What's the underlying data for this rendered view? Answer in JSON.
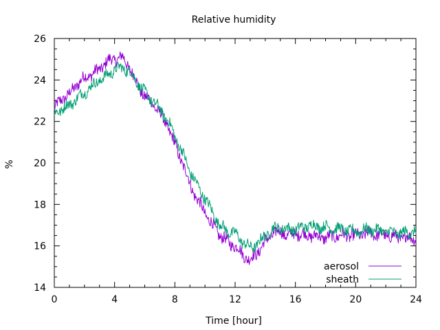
{
  "chart_data": {
    "type": "line",
    "title": "Relative humidity",
    "xlabel": "Time [hour]",
    "ylabel": "%",
    "xlim": [
      0,
      24
    ],
    "ylim": [
      14,
      26
    ],
    "x_ticks": [
      0,
      4,
      8,
      12,
      16,
      20,
      24
    ],
    "y_ticks": [
      14,
      16,
      18,
      20,
      22,
      24,
      26
    ],
    "grid": false,
    "legend_position": "bottom-right",
    "series": [
      {
        "name": "aerosol",
        "color": "#9400d3",
        "points": [
          [
            0.0,
            22.6
          ],
          [
            0.5,
            23.1
          ],
          [
            1.0,
            23.3
          ],
          [
            1.5,
            23.8
          ],
          [
            2.0,
            24.1
          ],
          [
            2.5,
            24.3
          ],
          [
            3.0,
            24.5
          ],
          [
            3.5,
            24.9
          ],
          [
            4.0,
            25.0
          ],
          [
            4.5,
            25.1
          ],
          [
            5.0,
            24.6
          ],
          [
            5.5,
            23.8
          ],
          [
            6.0,
            23.2
          ],
          [
            6.5,
            22.9
          ],
          [
            7.0,
            22.4
          ],
          [
            7.5,
            21.8
          ],
          [
            8.0,
            20.9
          ],
          [
            8.5,
            20.0
          ],
          [
            9.0,
            19.0
          ],
          [
            9.5,
            18.2
          ],
          [
            10.0,
            17.6
          ],
          [
            10.5,
            17.0
          ],
          [
            11.0,
            16.5
          ],
          [
            11.5,
            16.2
          ],
          [
            12.0,
            16.0
          ],
          [
            12.5,
            15.6
          ],
          [
            13.0,
            15.3
          ],
          [
            13.5,
            15.7
          ],
          [
            14.0,
            16.2
          ],
          [
            14.5,
            16.6
          ],
          [
            15.0,
            16.7
          ],
          [
            15.5,
            16.5
          ],
          [
            16.0,
            16.6
          ],
          [
            17.0,
            16.5
          ],
          [
            18.0,
            16.4
          ],
          [
            19.0,
            16.5
          ],
          [
            20.0,
            16.5
          ],
          [
            21.0,
            16.6
          ],
          [
            22.0,
            16.5
          ],
          [
            23.0,
            16.4
          ],
          [
            24.0,
            16.4
          ]
        ]
      },
      {
        "name": "sheath",
        "color": "#009e73",
        "points": [
          [
            0.0,
            22.4
          ],
          [
            0.5,
            22.6
          ],
          [
            1.0,
            22.8
          ],
          [
            1.5,
            23.1
          ],
          [
            2.0,
            23.4
          ],
          [
            2.5,
            23.7
          ],
          [
            3.0,
            24.0
          ],
          [
            3.5,
            24.2
          ],
          [
            4.0,
            24.5
          ],
          [
            4.5,
            24.6
          ],
          [
            5.0,
            24.4
          ],
          [
            5.5,
            23.9
          ],
          [
            6.0,
            23.4
          ],
          [
            6.5,
            23.0
          ],
          [
            7.0,
            22.6
          ],
          [
            7.5,
            22.1
          ],
          [
            8.0,
            21.3
          ],
          [
            8.5,
            20.5
          ],
          [
            9.0,
            19.6
          ],
          [
            9.5,
            18.9
          ],
          [
            10.0,
            18.3
          ],
          [
            10.5,
            17.6
          ],
          [
            11.0,
            17.0
          ],
          [
            11.5,
            16.7
          ],
          [
            12.0,
            16.6
          ],
          [
            12.5,
            16.2
          ],
          [
            13.0,
            15.9
          ],
          [
            13.5,
            16.1
          ],
          [
            14.0,
            16.5
          ],
          [
            14.5,
            16.8
          ],
          [
            15.0,
            16.9
          ],
          [
            15.5,
            16.8
          ],
          [
            16.0,
            16.8
          ],
          [
            17.0,
            17.0
          ],
          [
            18.0,
            16.9
          ],
          [
            19.0,
            16.8
          ],
          [
            20.0,
            16.7
          ],
          [
            21.0,
            16.8
          ],
          [
            22.0,
            16.7
          ],
          [
            23.0,
            16.6
          ],
          [
            24.0,
            16.7
          ]
        ]
      }
    ]
  }
}
